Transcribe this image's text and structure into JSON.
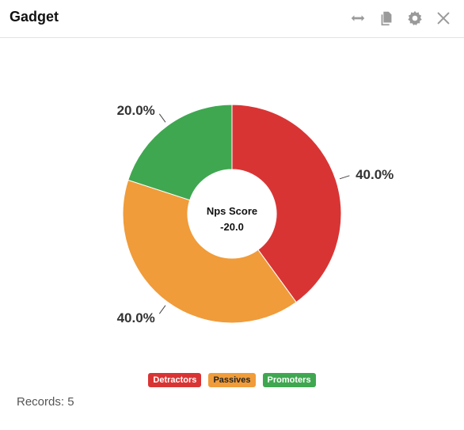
{
  "header": {
    "title": "Gadget",
    "icons": [
      "expand-horizontal-icon",
      "copy-icon",
      "gear-icon",
      "close-icon"
    ]
  },
  "chart_data": {
    "type": "pie",
    "donut": true,
    "center_label": "Nps Score",
    "center_value": "-20.0",
    "slices": [
      {
        "name": "Detractors",
        "value": 40.0,
        "label": "40.0%",
        "color": "#d93434"
      },
      {
        "name": "Passives",
        "value": 40.0,
        "label": "40.0%",
        "color": "#f09c3a"
      },
      {
        "name": "Promoters",
        "value": 20.0,
        "label": "20.0%",
        "color": "#3fa750"
      }
    ],
    "legend_position": "bottom"
  },
  "legend": [
    {
      "label": "Detractors",
      "bg": "#d93434",
      "fg": "#ffffff"
    },
    {
      "label": "Passives",
      "bg": "#f09c3a",
      "fg": "#222222"
    },
    {
      "label": "Promoters",
      "bg": "#3fa750",
      "fg": "#ffffff"
    }
  ],
  "footer": {
    "records": "Records: 5"
  }
}
